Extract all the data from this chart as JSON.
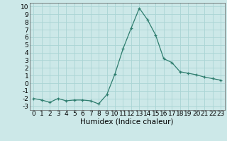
{
  "x": [
    0,
    1,
    2,
    3,
    4,
    5,
    6,
    7,
    8,
    9,
    10,
    11,
    12,
    13,
    14,
    15,
    16,
    17,
    18,
    19,
    20,
    21,
    22,
    23
  ],
  "y": [
    -2.0,
    -2.2,
    -2.5,
    -2.0,
    -2.3,
    -2.2,
    -2.2,
    -2.3,
    -2.7,
    -1.5,
    1.2,
    4.5,
    7.2,
    9.8,
    8.3,
    6.3,
    3.2,
    2.7,
    1.5,
    1.3,
    1.1,
    0.8,
    0.6,
    0.4
  ],
  "line_color": "#2e7d6e",
  "marker": "+",
  "bg_color": "#cce8e8",
  "grid_color": "#aad4d4",
  "xlabel": "Humidex (Indice chaleur)",
  "xlim": [
    -0.5,
    23.5
  ],
  "ylim": [
    -3.5,
    10.5
  ],
  "yticks": [
    -3,
    -2,
    -1,
    0,
    1,
    2,
    3,
    4,
    5,
    6,
    7,
    8,
    9,
    10
  ],
  "xticks": [
    0,
    1,
    2,
    3,
    4,
    5,
    6,
    7,
    8,
    9,
    10,
    11,
    12,
    13,
    14,
    15,
    16,
    17,
    18,
    19,
    20,
    21,
    22,
    23
  ],
  "tick_fontsize": 6.5,
  "xlabel_fontsize": 7.5
}
